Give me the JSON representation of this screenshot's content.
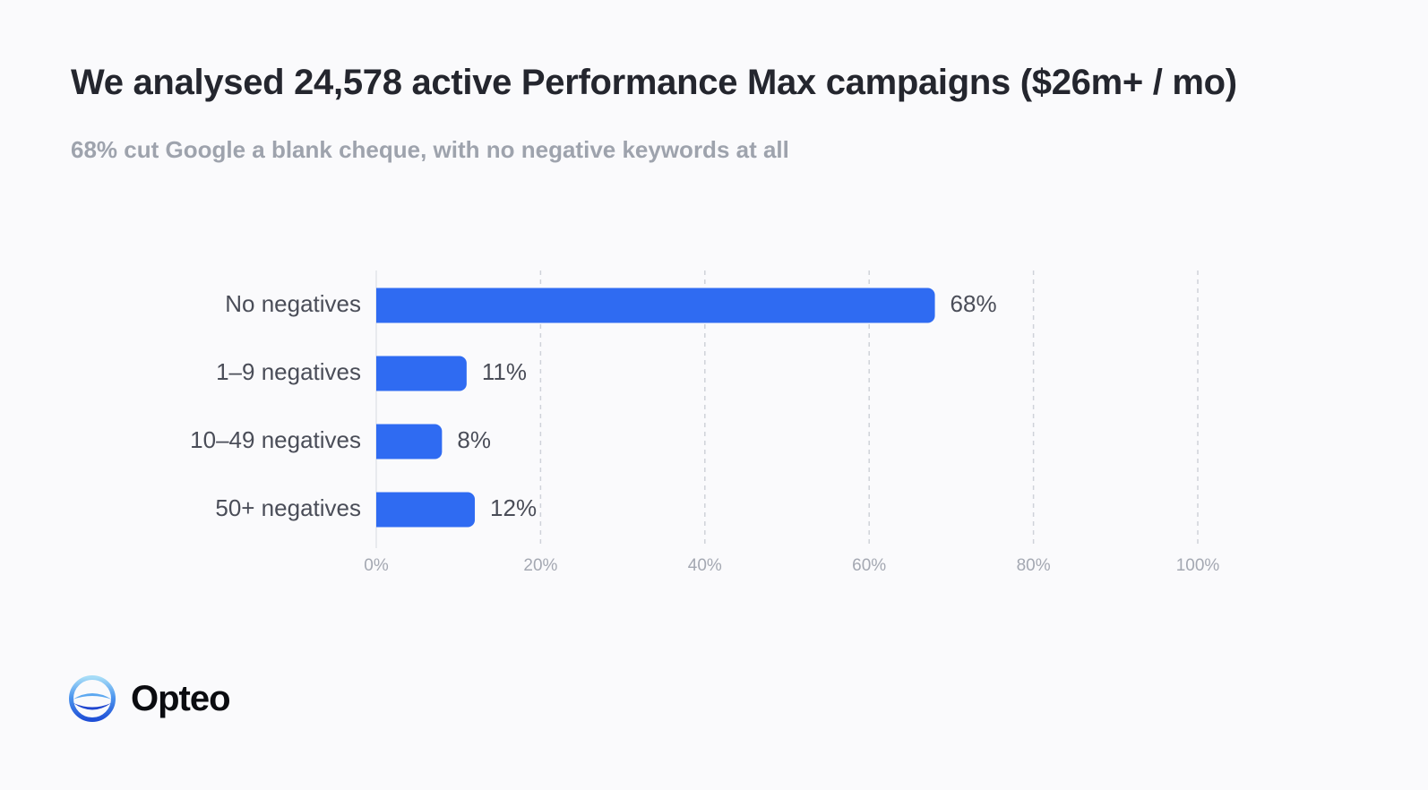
{
  "header": {
    "title": "We analysed 24,578 active Performance Max campaigns ($26m+ / mo)",
    "subtitle": "68% cut Google a blank cheque, with no negative keywords at all"
  },
  "brand": {
    "name": "Opteo",
    "icon": "opteo-logo-icon",
    "color": "#2f6bf2"
  },
  "chart_data": {
    "type": "bar",
    "orientation": "horizontal",
    "categories": [
      "No negatives",
      "1–9 negatives",
      "10–49 negatives",
      "50+ negatives"
    ],
    "values": [
      68,
      11,
      8,
      12
    ],
    "value_labels": [
      "68%",
      "11%",
      "8%",
      "12%"
    ],
    "xlim": [
      0,
      100
    ],
    "x_ticks": [
      0,
      20,
      40,
      60,
      80,
      100
    ],
    "x_tick_labels": [
      "0%",
      "20%",
      "40%",
      "60%",
      "80%",
      "100%"
    ],
    "grid": true,
    "legend": "none",
    "bar_color": "#2f6bf2",
    "title": "",
    "xlabel": "",
    "ylabel": ""
  }
}
